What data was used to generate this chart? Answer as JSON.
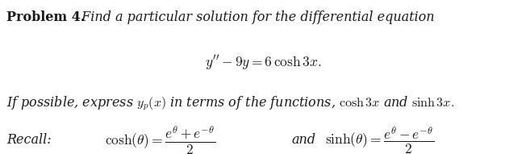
{
  "background_color": "#ffffff",
  "figsize": [
    6.52,
    1.91
  ],
  "dpi": 100,
  "line1_bold": "Problem 4.",
  "line1_italic": " Find a particular solution for the differential equation",
  "line2": "$y^{\\prime\\prime} - 9y = 6\\,\\cosh 3x.$",
  "line3_italic": "If possible, express $y_{p}(x)$ in terms of the functions, $\\cosh 3x$ and $\\sinh 3x.$",
  "recall_label": "Recall:",
  "cosh_expr": "$\\cosh(\\theta) = \\dfrac{e^{\\theta}+e^{-\\theta}}{2}$",
  "and_word": "and",
  "sinh_expr": "$\\sinh(\\theta) = \\dfrac{e^{\\theta}-e^{-\\theta}}{2}$",
  "fontsize_main": 11.5,
  "fontsize_math": 12.5,
  "text_color": "#1a1a1a"
}
